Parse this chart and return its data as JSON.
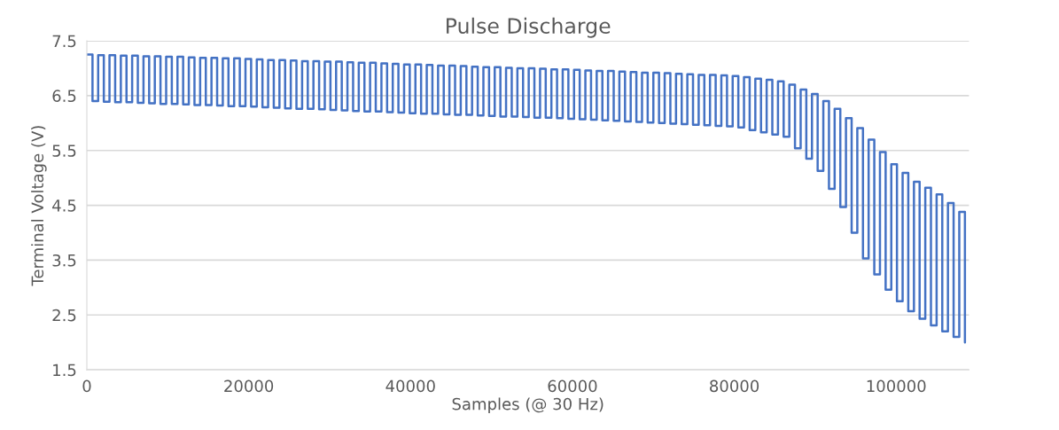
{
  "chart_data": {
    "type": "step",
    "title": "Pulse Discharge",
    "xlabel": "Samples (@ 30 Hz)",
    "ylabel": "Terminal Voltage (V)",
    "x": [
      0,
      700,
      1400,
      2100,
      2800,
      3500,
      4200,
      4900,
      5600,
      6300,
      7000,
      7700,
      8400,
      9100,
      9800,
      10500,
      11200,
      11900,
      12600,
      13300,
      14000,
      14700,
      15400,
      16100,
      16800,
      17500,
      18200,
      18900,
      19600,
      20300,
      21000,
      21700,
      22400,
      23100,
      23800,
      24500,
      25200,
      25900,
      26600,
      27300,
      28000,
      28700,
      29400,
      30100,
      30800,
      31500,
      32200,
      32900,
      33600,
      34300,
      35000,
      35700,
      36400,
      37100,
      37800,
      38500,
      39200,
      39900,
      40600,
      41300,
      42000,
      42700,
      43400,
      44100,
      44800,
      45500,
      46200,
      46900,
      47600,
      48300,
      49000,
      49700,
      50400,
      51100,
      51800,
      52500,
      53200,
      53900,
      54600,
      55300,
      56000,
      56700,
      57400,
      58100,
      58800,
      59500,
      60200,
      60900,
      61600,
      62300,
      63000,
      63700,
      64400,
      65100,
      65800,
      66500,
      67200,
      67900,
      68600,
      69300,
      70000,
      70700,
      71400,
      72100,
      72800,
      73500,
      74200,
      74900,
      75600,
      76300,
      77000,
      77700,
      78400,
      79100,
      79800,
      80500,
      81200,
      81900,
      82600,
      83300,
      84000,
      84700,
      85400,
      86100,
      86800,
      87500,
      88200,
      88900,
      89600,
      90300,
      91000,
      91700,
      92400,
      93100,
      93800,
      94500,
      95200,
      95900,
      96600,
      97300,
      98000,
      98700,
      99400,
      100100,
      100800,
      101500,
      102200,
      102900,
      103600,
      104300,
      105000,
      105700,
      106400,
      107100,
      107800,
      108500
    ],
    "series": [
      {
        "color": "#4472c4",
        "values": [
          7.25,
          6.4,
          7.24,
          6.39,
          7.24,
          6.38,
          7.23,
          6.38,
          7.23,
          6.37,
          7.22,
          6.36,
          7.22,
          6.35,
          7.21,
          6.35,
          7.21,
          6.34,
          7.2,
          6.33,
          7.19,
          6.33,
          7.19,
          6.32,
          7.18,
          6.31,
          7.18,
          6.31,
          7.17,
          6.3,
          7.16,
          6.29,
          7.15,
          6.28,
          7.15,
          6.27,
          7.14,
          6.26,
          7.13,
          6.26,
          7.13,
          6.25,
          7.12,
          6.24,
          7.12,
          6.23,
          7.11,
          6.22,
          7.1,
          6.21,
          7.1,
          6.21,
          7.09,
          6.2,
          7.08,
          6.19,
          7.07,
          6.18,
          7.07,
          6.17,
          7.06,
          6.17,
          7.05,
          6.16,
          7.05,
          6.15,
          7.04,
          6.15,
          7.03,
          6.14,
          7.02,
          6.13,
          7.02,
          6.12,
          7.01,
          6.12,
          7.0,
          6.11,
          7.0,
          6.1,
          6.99,
          6.1,
          6.98,
          6.09,
          6.98,
          6.08,
          6.97,
          6.07,
          6.96,
          6.06,
          6.95,
          6.05,
          6.95,
          6.04,
          6.94,
          6.03,
          6.93,
          6.02,
          6.92,
          6.01,
          6.92,
          6.0,
          6.91,
          5.99,
          6.9,
          5.98,
          6.89,
          5.97,
          6.88,
          5.96,
          6.88,
          5.95,
          6.87,
          5.94,
          6.86,
          5.92,
          6.84,
          5.87,
          6.81,
          5.83,
          6.79,
          5.79,
          6.76,
          5.75,
          6.7,
          5.54,
          6.61,
          5.35,
          6.53,
          5.13,
          6.4,
          4.8,
          6.26,
          4.47,
          6.09,
          4.0,
          5.91,
          3.53,
          5.7,
          3.24,
          5.47,
          2.96,
          5.25,
          2.75,
          5.09,
          2.57,
          4.93,
          2.43,
          4.82,
          2.31,
          4.7,
          2.2,
          4.54,
          2.1,
          4.38,
          2.0
        ]
      }
    ],
    "xlim": [
      0,
      109000
    ],
    "xticks": [
      0,
      20000,
      40000,
      60000,
      80000,
      100000
    ],
    "ylim": [
      1.5,
      7.5
    ],
    "yticks": [
      1.5,
      2.5,
      3.5,
      4.5,
      5.5,
      6.5,
      7.5
    ],
    "grid": "y",
    "line_style": "solid",
    "marker": "none"
  }
}
